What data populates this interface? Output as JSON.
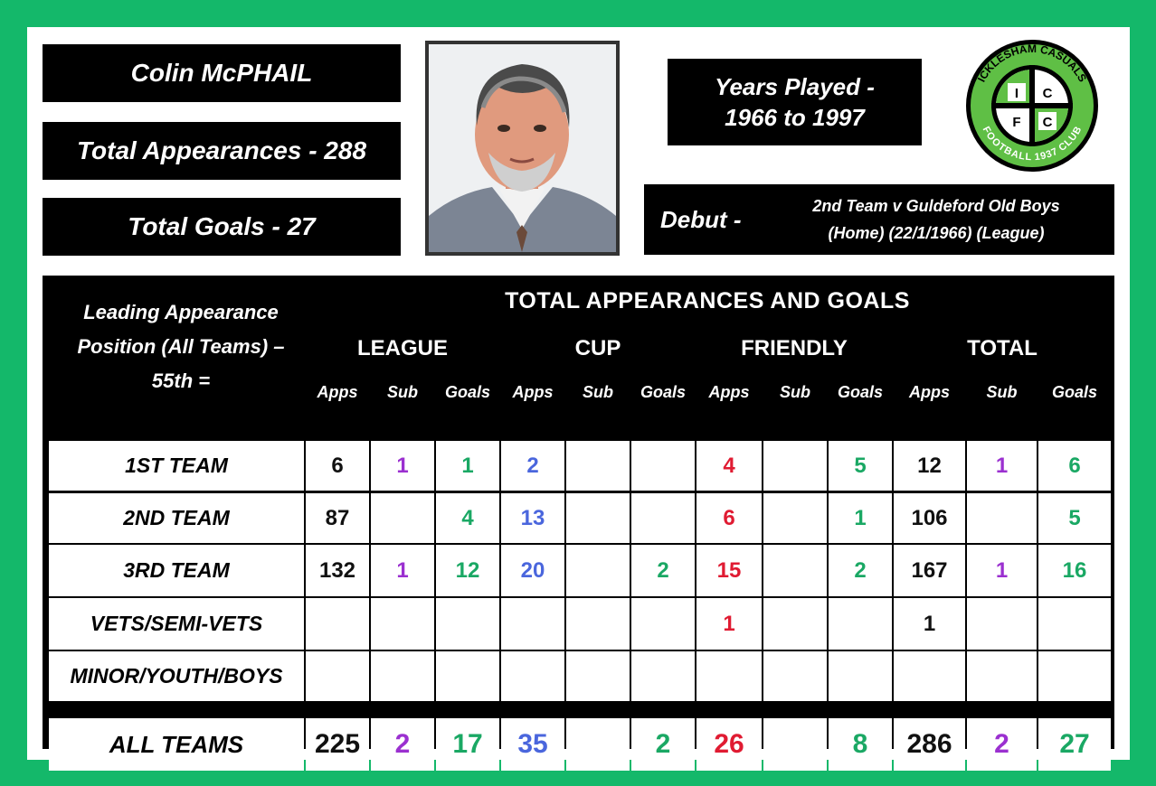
{
  "player": {
    "name": "Colin McPHAIL",
    "total_appearances": "Total Appearances - 288",
    "total_goals": "Total Goals - 27",
    "years_line1": "Years Played -",
    "years_line2": "1966 to 1997",
    "debut_label": "Debut -",
    "debut_line1": "2nd Team v Guldeford Old Boys",
    "debut_line2": "(Home) (22/1/1966) (League)"
  },
  "logo": {
    "top_text": "ICKLESHAM CASUALS",
    "bottom_text": "FOOTBALL 1937 CLUB",
    "letters": [
      "I",
      "C",
      "F",
      "C"
    ],
    "colors": {
      "green": "#5fbf45",
      "black": "#000000"
    }
  },
  "stats": {
    "title": "TOTAL APPEARANCES AND GOALS",
    "leading_line1": "Leading Appearance",
    "leading_line2": "Position (All Teams) –",
    "leading_line3": "55th =",
    "groups": [
      "LEAGUE",
      "CUP",
      "FRIENDLY",
      "TOTAL"
    ],
    "subheaders": [
      "Apps",
      "Sub",
      "Goals",
      "Apps",
      "Sub",
      "Goals",
      "Apps",
      "Sub",
      "Goals",
      "Apps",
      "Sub",
      "Goals"
    ],
    "rows": [
      {
        "label": "1ST TEAM",
        "values": [
          "6",
          "1",
          "1",
          "2",
          "",
          "",
          "4",
          "",
          "5",
          "12",
          "1",
          "6"
        ]
      },
      {
        "label": "2ND TEAM",
        "values": [
          "87",
          "",
          "4",
          "13",
          "",
          "",
          "6",
          "",
          "1",
          "106",
          "",
          "5"
        ]
      },
      {
        "label": "3RD TEAM",
        "values": [
          "132",
          "1",
          "12",
          "20",
          "",
          "2",
          "15",
          "",
          "2",
          "167",
          "1",
          "16"
        ]
      },
      {
        "label": "VETS/SEMI-VETS",
        "values": [
          "",
          "",
          "",
          "",
          "",
          "",
          "1",
          "",
          "",
          "1",
          "",
          ""
        ]
      },
      {
        "label": "MINOR/YOUTH/BOYS",
        "values": [
          "",
          "",
          "",
          "",
          "",
          "",
          "",
          "",
          "",
          "",
          "",
          ""
        ]
      }
    ],
    "total_row": {
      "label": "ALL TEAMS",
      "values": [
        "225",
        "2",
        "17",
        "35",
        "",
        "2",
        "26",
        "",
        "8",
        "286",
        "2",
        "27"
      ]
    },
    "column_colors": [
      "black",
      "purple",
      "green",
      "blue",
      "black",
      "green",
      "red",
      "black",
      "green",
      "black",
      "purple",
      "green"
    ]
  }
}
